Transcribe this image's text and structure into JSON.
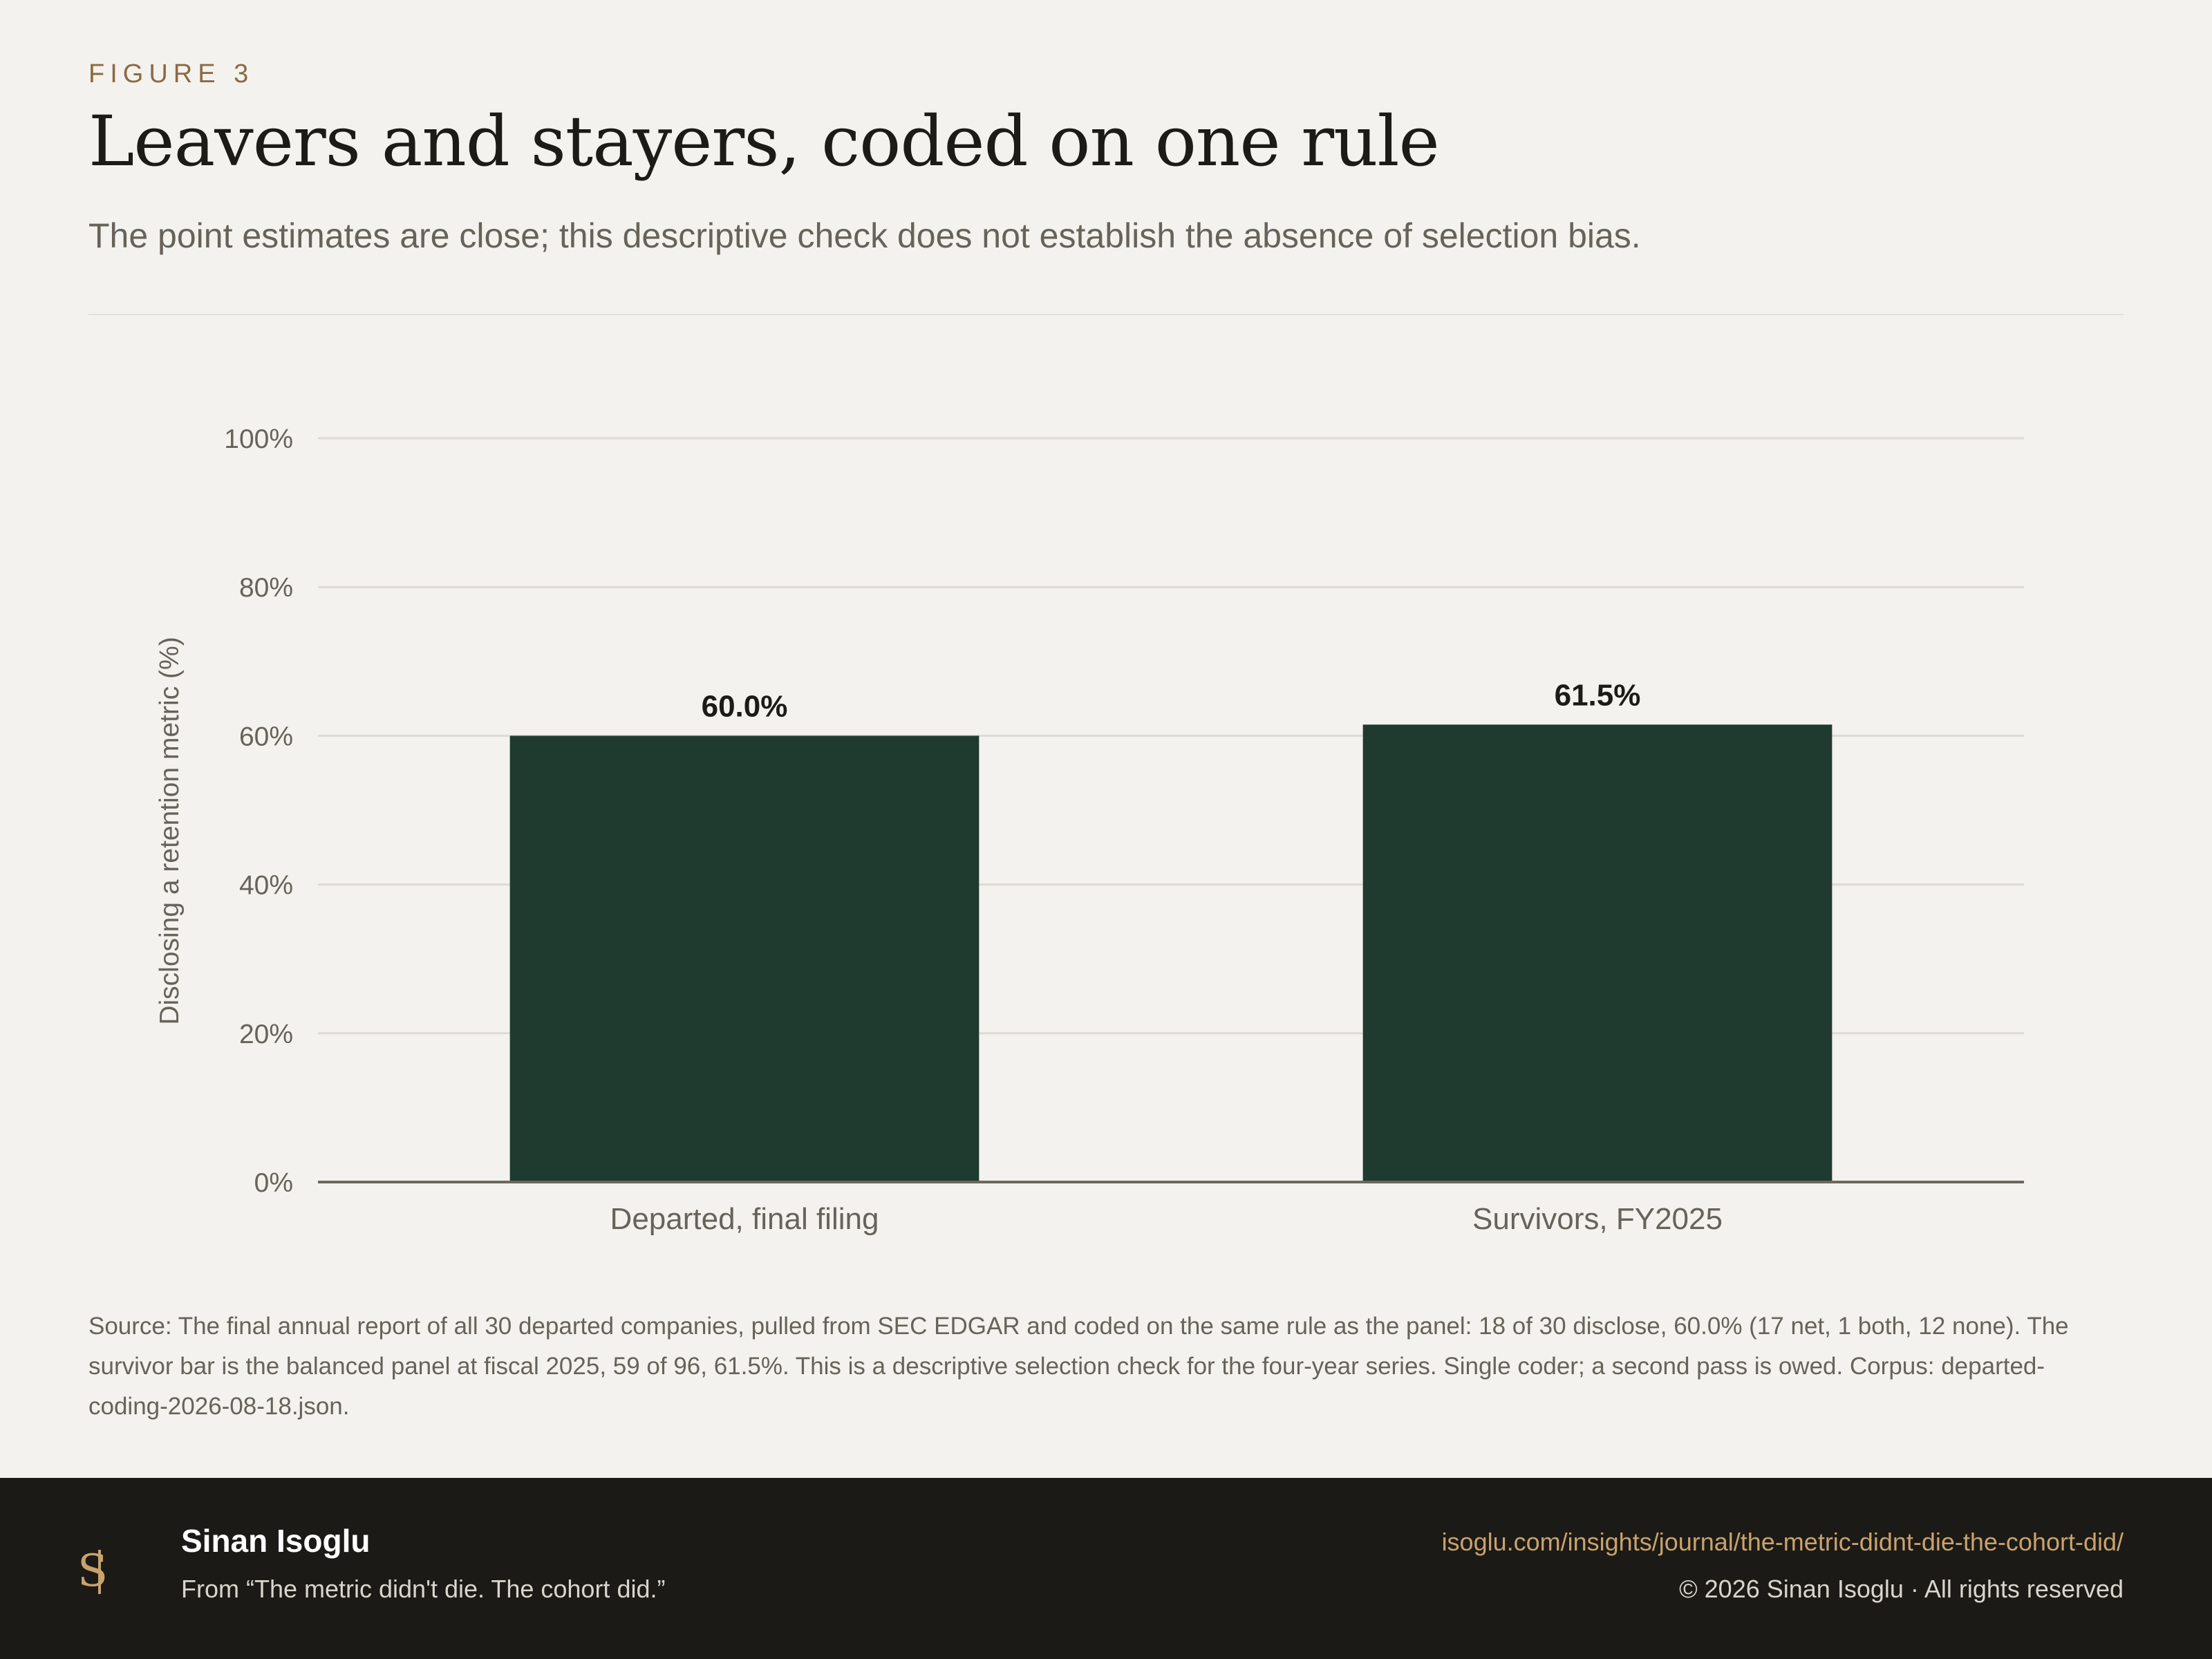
{
  "header": {
    "eyebrow": "FIGURE 3",
    "title": "Leavers and stayers, coded on one rule",
    "subtitle": "The point estimates are close; this descriptive check does not establish the absence of selection bias."
  },
  "chart_data": {
    "type": "bar",
    "categories": [
      "Departed, final filing",
      "Survivors, FY2025"
    ],
    "values": [
      60.0,
      61.5
    ],
    "data_labels": [
      "60.0%",
      "61.5%"
    ],
    "ylabel": "Disclosing a retention metric (%)",
    "xlabel": "",
    "ylim": [
      0,
      100
    ],
    "y_ticks": [
      0,
      20,
      40,
      60,
      80,
      100
    ],
    "y_tick_labels": [
      "0%",
      "20%",
      "40%",
      "60%",
      "80%",
      "100%"
    ],
    "grid": true,
    "bar_color": "#1f3a2f"
  },
  "source_note": "Source: The final annual report of all 30 departed companies, pulled from SEC EDGAR and coded on the same rule as the panel: 18 of 30 disclose, 60.0% (17 net, 1 both, 12 none). The survivor bar is the balanced panel at fiscal 2025, 59 of 96, 61.5%. This is a descriptive selection check for the four-year series. Single coder; a second pass is owed. Corpus: departed-coding-2026-08-18.json.",
  "footer": {
    "author": "Sinan Isoglu",
    "from": "From “The metric didn't die. The cohort did.”",
    "url": "isoglu.com/insights/journal/the-metric-didnt-die-the-cohort-did/",
    "copyright": "© 2026 Sinan Isoglu · All rights reserved",
    "logo_text": "SI",
    "accent_color": "#c9a26d"
  }
}
